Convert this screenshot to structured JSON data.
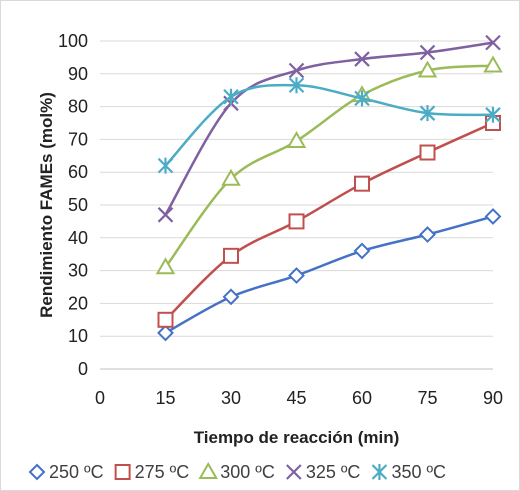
{
  "chart_data": {
    "type": "line",
    "title": "",
    "xlabel": "Tiempo de reacción (min)",
    "ylabel": "Rendimiento FAMEs (mol%)",
    "xlim": [
      0,
      90
    ],
    "ylim": [
      0,
      100
    ],
    "xticks": [
      0,
      15,
      30,
      45,
      60,
      75,
      90
    ],
    "yticks": [
      0,
      10,
      20,
      30,
      40,
      50,
      60,
      70,
      80,
      90,
      100
    ],
    "grid": "horizontal",
    "smooth": true,
    "legend_position": "bottom",
    "x": [
      15,
      30,
      45,
      60,
      75,
      90
    ],
    "series": [
      {
        "name": "250 ºC",
        "marker": "diamond",
        "color": "#4472c4",
        "values": [
          11,
          22,
          28.5,
          36,
          41,
          46.5
        ]
      },
      {
        "name": "275 ºC",
        "marker": "square",
        "color": "#c0504d",
        "values": [
          15,
          34.5,
          45,
          56.5,
          66,
          75
        ]
      },
      {
        "name": "300 ºC",
        "marker": "triangle",
        "color": "#9bbb59",
        "values": [
          31,
          58,
          69.5,
          83.5,
          91,
          92.5
        ]
      },
      {
        "name": "325 ºC",
        "marker": "x",
        "color": "#7f60a0",
        "values": [
          47,
          81,
          91,
          94.5,
          96.5,
          99.5
        ]
      },
      {
        "name": "350 ºC",
        "marker": "star",
        "color": "#4bacc6",
        "values": [
          62,
          83,
          86.5,
          82.5,
          78,
          77.5
        ]
      }
    ]
  }
}
